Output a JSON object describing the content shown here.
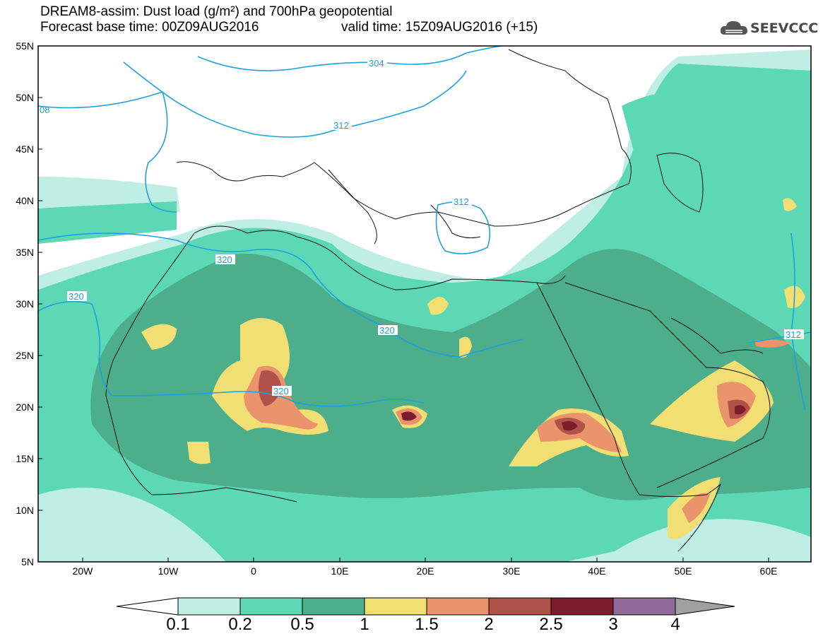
{
  "header": {
    "title_line_1": "DREAM8-assim: Dust load (g/m²) and 700hPa geopotential",
    "title_line_2": "Forecast base time: 00Z09AUG2016",
    "valid_time": "valid time: 15Z09AUG2016 (+15)",
    "logo": {
      "text": "SEEVCCC",
      "icon": "cloud-icon"
    }
  },
  "map": {
    "lat_labels": [
      "55N",
      "50N",
      "45N",
      "40N",
      "35N",
      "30N",
      "25N",
      "20N",
      "15N",
      "10N",
      "5N"
    ],
    "lon_labels": [
      "20W",
      "10W",
      "0",
      "10E",
      "20E",
      "30E",
      "40E",
      "50E",
      "60E"
    ],
    "contour_labels": [
      "304",
      "312",
      "312",
      "320",
      "320",
      "320",
      "320",
      "312",
      "08"
    ],
    "colors": {
      "0.1": "#bfeee4",
      "0.2": "#5cd9b4",
      "0.5": "#4cae8a",
      "1": "#f2df73",
      "1.5": "#e9946a",
      "2": "#b0524a",
      "2.5": "#7f1c2c",
      "3": "#8f6a9a",
      "4": "#a0a0a0",
      "contour": "#1ea1e0",
      "coast": "#111111"
    }
  },
  "colorbar": {
    "labels": [
      "0.1",
      "0.2",
      "0.5",
      "1",
      "1.5",
      "2",
      "2.5",
      "3",
      "4"
    ],
    "colors": [
      "#ffffff",
      "#bfeee4",
      "#5cd9b4",
      "#4cae8a",
      "#f2df73",
      "#e9946a",
      "#b0524a",
      "#7f1c2c",
      "#8f6a9a",
      "#a0a0a0"
    ]
  }
}
